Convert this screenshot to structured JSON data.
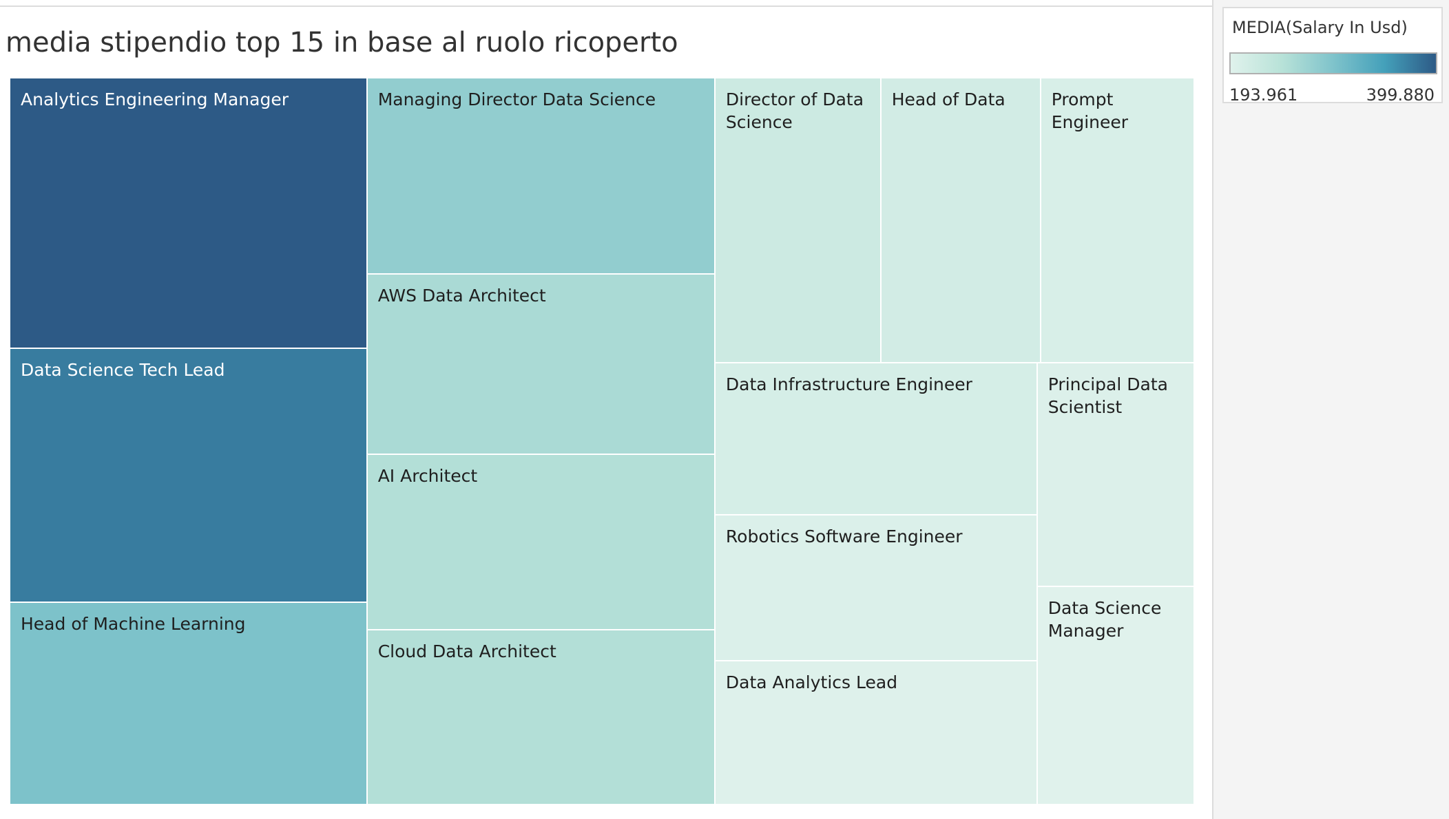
{
  "chart_data": {
    "type": "treemap",
    "title": "media stipendio top 15 in base al ruolo ricoperto",
    "color_measure": "MEDIA(Salary In Usd)",
    "color_scale": {
      "min": 193.961,
      "max": 399.88,
      "min_label": "193.961",
      "max_label": "399.880",
      "colors": [
        "#e0f2ec",
        "#b8e2d8",
        "#7fc3cb",
        "#44a0ba",
        "#2d5a86"
      ]
    },
    "items": [
      {
        "label": "Analytics Engineering Manager",
        "value": 399.88
      },
      {
        "label": "Data Science Tech Lead",
        "value": 375.0
      },
      {
        "label": "Head of Machine Learning",
        "value": 299.0
      },
      {
        "label": "Managing Director Data Science",
        "value": 280.0
      },
      {
        "label": "AWS Data Architect",
        "value": 258.0
      },
      {
        "label": "AI Architect",
        "value": 250.0
      },
      {
        "label": "Cloud Data Architect",
        "value": 250.0
      },
      {
        "label": "Director of Data Science",
        "value": 220.0
      },
      {
        "label": "Head of Data",
        "value": 212.0
      },
      {
        "label": "Prompt Engineer",
        "value": 204.0
      },
      {
        "label": "Data Infrastructure Engineer",
        "value": 208.0
      },
      {
        "label": "Robotics Software Engineer",
        "value": 200.0
      },
      {
        "label": "Data Analytics Lead",
        "value": 197.0
      },
      {
        "label": "Principal Data Scientist",
        "value": 199.0
      },
      {
        "label": "Data Science Manager",
        "value": 193.961
      }
    ]
  }
}
